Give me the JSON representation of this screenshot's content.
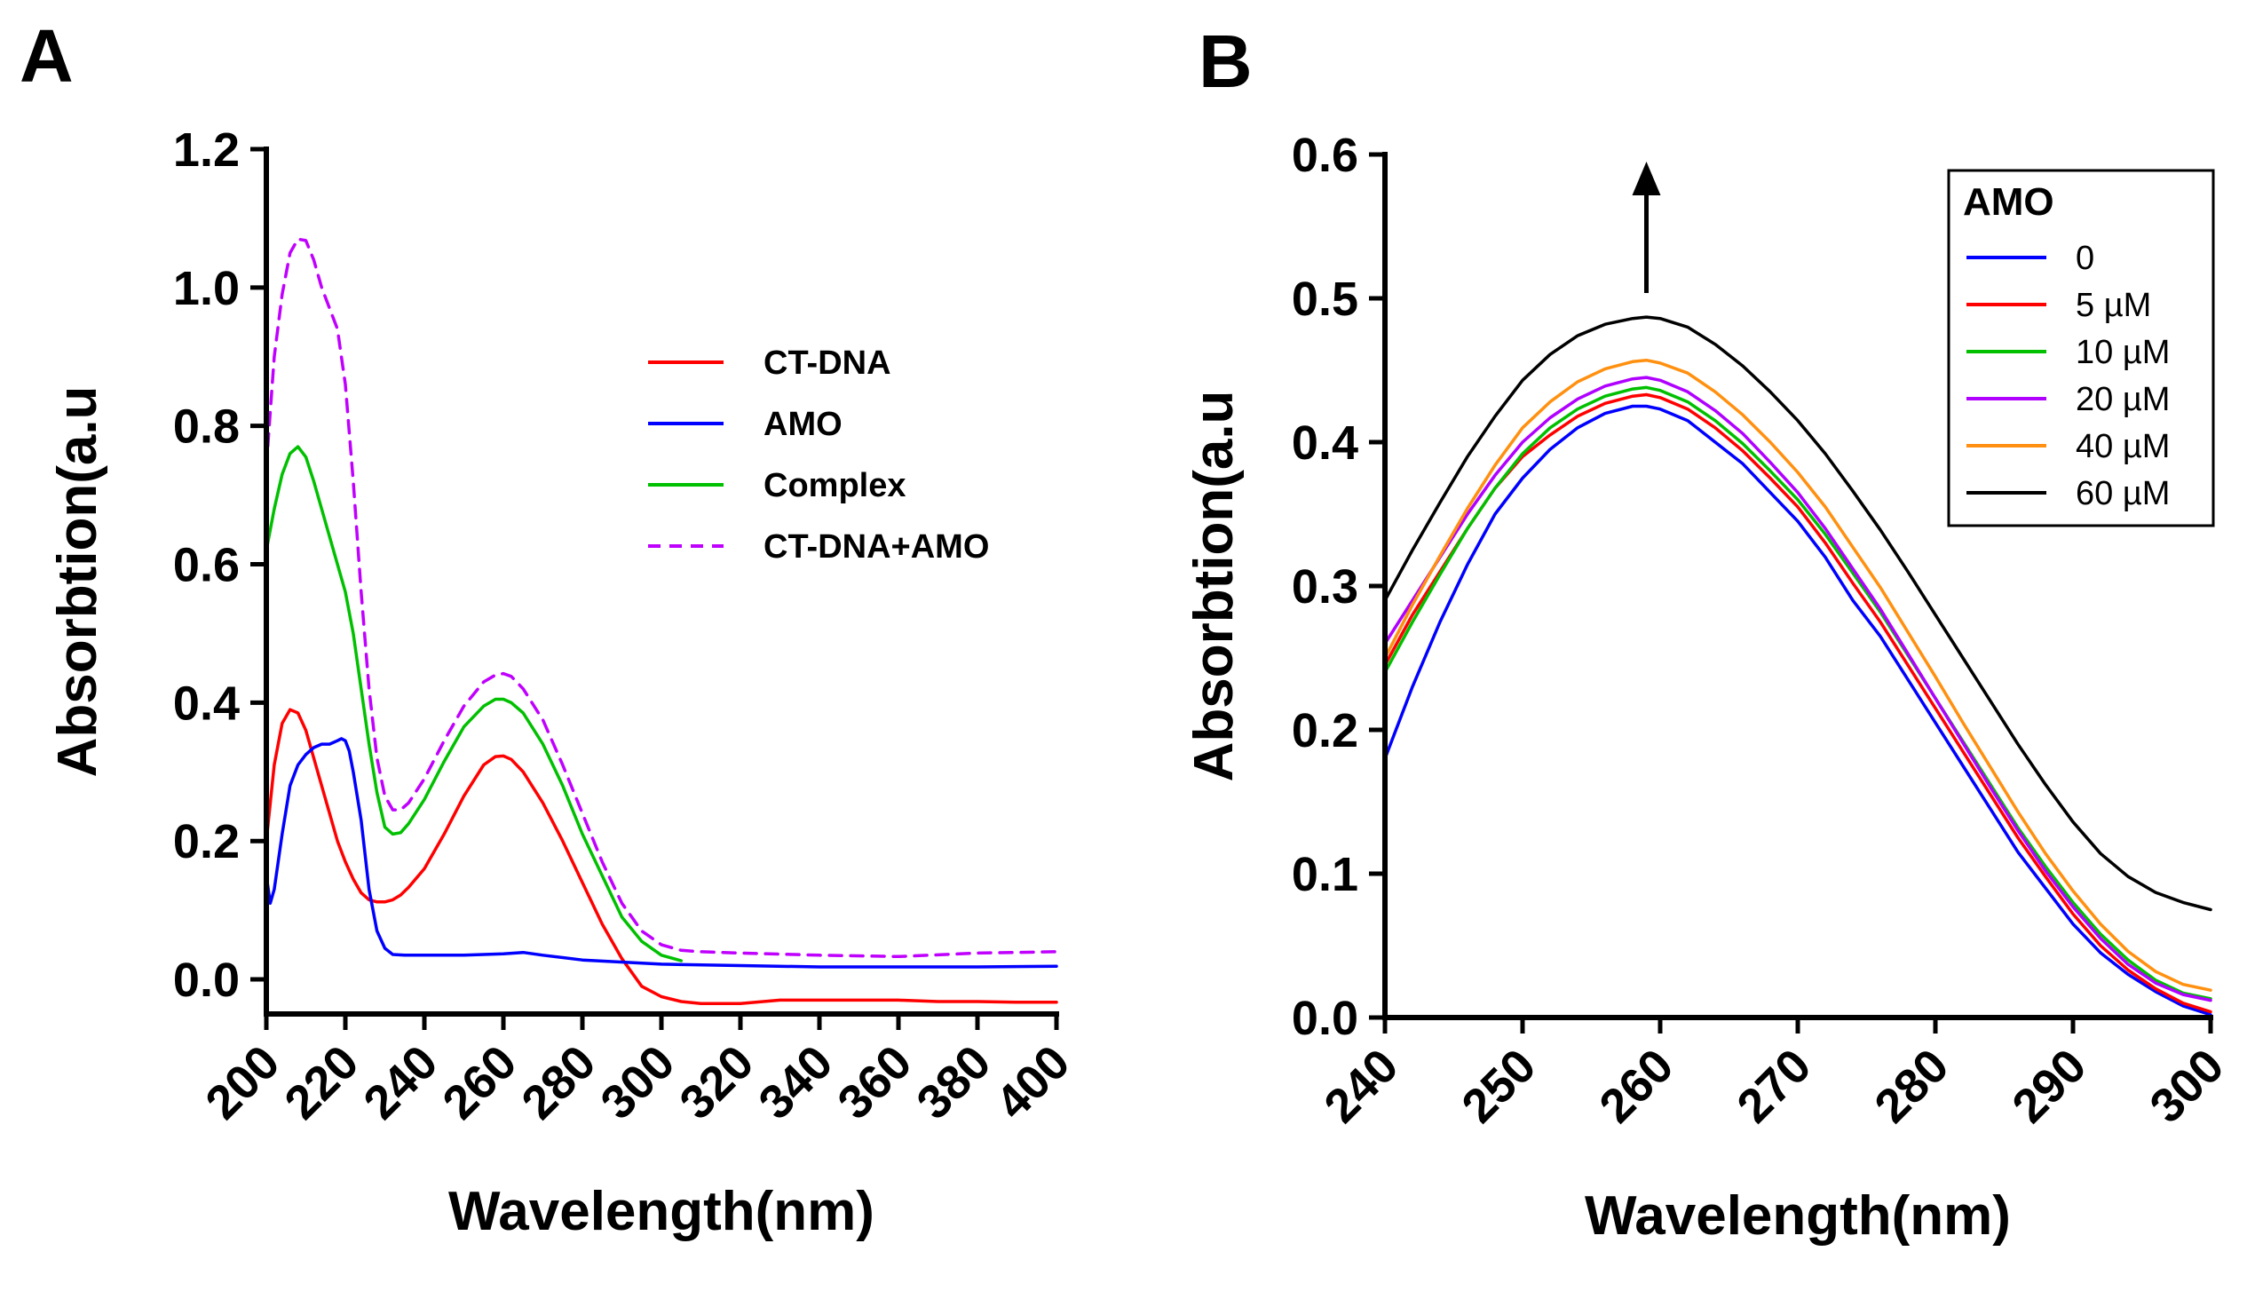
{
  "chart_data": [
    {
      "panel": "A",
      "type": "line",
      "xlabel": "Wavelength(nm)",
      "ylabel": "Absorbtion(a.u",
      "xlim": [
        200,
        400
      ],
      "ylim": [
        -0.05,
        1.2
      ],
      "xticks": [
        200,
        220,
        240,
        260,
        280,
        300,
        320,
        340,
        360,
        380,
        400
      ],
      "yticks": [
        "0.0",
        "0.2",
        "0.4",
        "0.6",
        "0.8",
        "1.0",
        "1.2"
      ],
      "legend_position": "top-right",
      "series": [
        {
          "name": "CT-DNA",
          "color": "#ff0000",
          "dash": false,
          "x": [
            200,
            202,
            204,
            206,
            208,
            210,
            212,
            214,
            216,
            218,
            220,
            222,
            224,
            226,
            228,
            230,
            232,
            234,
            236,
            240,
            245,
            250,
            255,
            258,
            260,
            262,
            265,
            270,
            275,
            280,
            285,
            290,
            295,
            300,
            305,
            310,
            315,
            320,
            330,
            340,
            350,
            360,
            370,
            380,
            390,
            400
          ],
          "y": [
            0.2,
            0.31,
            0.37,
            0.39,
            0.385,
            0.36,
            0.32,
            0.28,
            0.24,
            0.2,
            0.17,
            0.145,
            0.125,
            0.115,
            0.112,
            0.112,
            0.115,
            0.122,
            0.133,
            0.16,
            0.21,
            0.265,
            0.31,
            0.322,
            0.323,
            0.318,
            0.3,
            0.255,
            0.2,
            0.14,
            0.08,
            0.03,
            -0.01,
            -0.025,
            -0.032,
            -0.035,
            -0.035,
            -0.035,
            -0.03,
            -0.03,
            -0.03,
            -0.03,
            -0.032,
            -0.032,
            -0.033,
            -0.033
          ]
        },
        {
          "name": "AMO",
          "color": "#0000ff",
          "dash": false,
          "x": [
            200,
            201,
            202,
            204,
            206,
            208,
            210,
            212,
            214,
            216,
            218,
            219,
            220,
            221,
            222,
            224,
            226,
            228,
            230,
            232,
            235,
            240,
            250,
            260,
            265,
            270,
            280,
            300,
            320,
            340,
            360,
            380,
            400
          ],
          "y": [
            0.15,
            0.11,
            0.13,
            0.21,
            0.28,
            0.31,
            0.325,
            0.335,
            0.34,
            0.34,
            0.345,
            0.348,
            0.345,
            0.33,
            0.3,
            0.23,
            0.13,
            0.07,
            0.045,
            0.036,
            0.035,
            0.035,
            0.035,
            0.037,
            0.039,
            0.035,
            0.028,
            0.022,
            0.02,
            0.018,
            0.018,
            0.018,
            0.019
          ]
        },
        {
          "name": "Complex",
          "color": "#00c000",
          "dash": false,
          "x": [
            200,
            202,
            204,
            206,
            208,
            210,
            212,
            214,
            216,
            218,
            220,
            222,
            224,
            226,
            228,
            230,
            232,
            234,
            236,
            240,
            245,
            250,
            255,
            258,
            260,
            262,
            265,
            270,
            275,
            280,
            285,
            290,
            295,
            300,
            305
          ],
          "y": [
            0.62,
            0.68,
            0.73,
            0.76,
            0.77,
            0.755,
            0.72,
            0.68,
            0.64,
            0.6,
            0.56,
            0.5,
            0.42,
            0.34,
            0.27,
            0.22,
            0.21,
            0.212,
            0.225,
            0.26,
            0.315,
            0.365,
            0.395,
            0.405,
            0.405,
            0.4,
            0.385,
            0.34,
            0.28,
            0.21,
            0.15,
            0.09,
            0.055,
            0.035,
            0.027
          ]
        },
        {
          "name": "CT-DNA+AMO",
          "color": "#c000ff",
          "dash": true,
          "x": [
            200,
            201,
            202,
            204,
            206,
            208,
            210,
            212,
            214,
            216,
            218,
            220,
            222,
            224,
            226,
            228,
            230,
            232,
            234,
            236,
            240,
            245,
            250,
            255,
            258,
            260,
            262,
            265,
            270,
            275,
            280,
            285,
            290,
            295,
            300,
            305,
            310,
            320,
            340,
            360,
            380,
            400
          ],
          "y": [
            0.74,
            0.82,
            0.9,
            0.99,
            1.05,
            1.07,
            1.068,
            1.04,
            1.0,
            0.97,
            0.94,
            0.86,
            0.72,
            0.56,
            0.42,
            0.32,
            0.265,
            0.245,
            0.245,
            0.255,
            0.29,
            0.345,
            0.395,
            0.43,
            0.44,
            0.442,
            0.438,
            0.42,
            0.375,
            0.31,
            0.24,
            0.17,
            0.11,
            0.07,
            0.05,
            0.042,
            0.04,
            0.038,
            0.035,
            0.033,
            0.038,
            0.04
          ]
        }
      ]
    },
    {
      "panel": "B",
      "type": "line",
      "xlabel": "Wavelength(nm)",
      "ylabel": "Absorbtion(a.u",
      "xlim": [
        240,
        300
      ],
      "ylim": [
        0.0,
        0.6
      ],
      "xticks": [
        240,
        250,
        260,
        270,
        280,
        290,
        300
      ],
      "yticks": [
        "0.0",
        "0.1",
        "0.2",
        "0.3",
        "0.4",
        "0.5",
        "0.6"
      ],
      "legend_position": "top-right",
      "legend_title": "AMO",
      "annotation": "arrow pointing up over the peak near 259 nm",
      "series": [
        {
          "name": "0",
          "color": "#0000ff",
          "x": [
            240,
            242,
            244,
            246,
            248,
            250,
            252,
            254,
            256,
            258,
            259,
            260,
            262,
            264,
            266,
            268,
            270,
            272,
            274,
            276,
            278,
            280,
            282,
            284,
            286,
            288,
            290,
            292,
            294,
            296,
            298,
            300
          ],
          "y": [
            0.18,
            0.23,
            0.275,
            0.315,
            0.35,
            0.375,
            0.395,
            0.41,
            0.42,
            0.425,
            0.425,
            0.423,
            0.415,
            0.4,
            0.385,
            0.365,
            0.345,
            0.32,
            0.29,
            0.265,
            0.235,
            0.205,
            0.175,
            0.145,
            0.115,
            0.09,
            0.065,
            0.045,
            0.03,
            0.018,
            0.008,
            0.002
          ]
        },
        {
          "name": "5 µM",
          "color": "#ff0000",
          "x": [
            240,
            242,
            244,
            246,
            248,
            250,
            252,
            254,
            256,
            258,
            259,
            260,
            262,
            264,
            266,
            268,
            270,
            272,
            274,
            276,
            278,
            280,
            282,
            284,
            286,
            288,
            290,
            292,
            294,
            296,
            298,
            300
          ],
          "y": [
            0.245,
            0.28,
            0.31,
            0.34,
            0.368,
            0.39,
            0.405,
            0.418,
            0.427,
            0.432,
            0.433,
            0.431,
            0.423,
            0.41,
            0.394,
            0.375,
            0.355,
            0.33,
            0.302,
            0.275,
            0.245,
            0.215,
            0.185,
            0.155,
            0.125,
            0.098,
            0.072,
            0.05,
            0.033,
            0.02,
            0.01,
            0.004
          ]
        },
        {
          "name": "10 µM",
          "color": "#00c000",
          "x": [
            240,
            242,
            244,
            246,
            248,
            250,
            252,
            254,
            256,
            258,
            259,
            260,
            262,
            264,
            266,
            268,
            270,
            272,
            274,
            276,
            278,
            280,
            282,
            284,
            286,
            288,
            290,
            292,
            294,
            296,
            298,
            300
          ],
          "y": [
            0.24,
            0.275,
            0.308,
            0.34,
            0.368,
            0.392,
            0.41,
            0.423,
            0.432,
            0.437,
            0.438,
            0.436,
            0.428,
            0.415,
            0.399,
            0.38,
            0.36,
            0.336,
            0.309,
            0.282,
            0.252,
            0.222,
            0.192,
            0.162,
            0.132,
            0.105,
            0.08,
            0.058,
            0.04,
            0.026,
            0.017,
            0.013
          ]
        },
        {
          "name": "20 µM",
          "color": "#b000ff",
          "x": [
            240,
            242,
            244,
            246,
            248,
            250,
            252,
            254,
            256,
            258,
            259,
            260,
            262,
            264,
            266,
            268,
            270,
            272,
            274,
            276,
            278,
            280,
            282,
            284,
            286,
            288,
            290,
            292,
            294,
            296,
            298,
            300
          ],
          "y": [
            0.26,
            0.29,
            0.32,
            0.35,
            0.377,
            0.4,
            0.417,
            0.43,
            0.439,
            0.444,
            0.445,
            0.443,
            0.435,
            0.422,
            0.406,
            0.386,
            0.365,
            0.34,
            0.312,
            0.284,
            0.253,
            0.222,
            0.191,
            0.16,
            0.13,
            0.102,
            0.077,
            0.055,
            0.037,
            0.024,
            0.016,
            0.012
          ]
        },
        {
          "name": "40 µM",
          "color": "#ff9010",
          "x": [
            240,
            242,
            244,
            246,
            248,
            250,
            252,
            254,
            256,
            258,
            259,
            260,
            262,
            264,
            266,
            268,
            270,
            272,
            274,
            276,
            278,
            280,
            282,
            284,
            286,
            288,
            290,
            292,
            294,
            296,
            298,
            300
          ],
          "y": [
            0.25,
            0.287,
            0.321,
            0.354,
            0.384,
            0.41,
            0.428,
            0.442,
            0.451,
            0.456,
            0.457,
            0.455,
            0.448,
            0.435,
            0.419,
            0.4,
            0.379,
            0.355,
            0.327,
            0.299,
            0.268,
            0.237,
            0.205,
            0.174,
            0.143,
            0.114,
            0.088,
            0.065,
            0.046,
            0.032,
            0.023,
            0.019
          ]
        },
        {
          "name": "60 µM",
          "color": "#000000",
          "x": [
            240,
            242,
            244,
            246,
            248,
            250,
            252,
            254,
            256,
            258,
            259,
            260,
            262,
            264,
            266,
            268,
            270,
            272,
            274,
            276,
            278,
            280,
            282,
            284,
            286,
            288,
            290,
            292,
            294,
            296,
            298,
            300
          ],
          "y": [
            0.29,
            0.325,
            0.358,
            0.39,
            0.418,
            0.443,
            0.461,
            0.474,
            0.482,
            0.486,
            0.487,
            0.486,
            0.48,
            0.468,
            0.453,
            0.435,
            0.415,
            0.392,
            0.366,
            0.339,
            0.31,
            0.28,
            0.25,
            0.22,
            0.19,
            0.162,
            0.136,
            0.114,
            0.098,
            0.087,
            0.08,
            0.075
          ]
        }
      ]
    }
  ]
}
